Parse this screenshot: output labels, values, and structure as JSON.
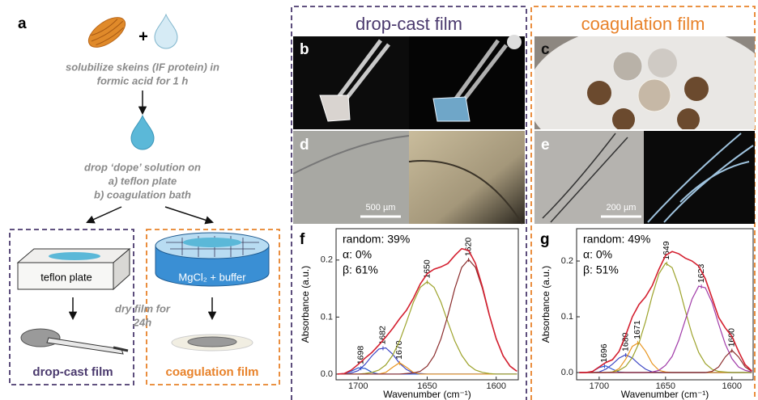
{
  "panel_letters": [
    "a",
    "b",
    "c",
    "d",
    "e"
  ],
  "schematic": {
    "plus": "+",
    "step1": [
      "solubilize skeins (IF protein) in",
      "formic acid for 1 h"
    ],
    "step2": [
      "drop ‘dope’ solution on",
      "a) teflon plate",
      "b) coagulation bath"
    ],
    "teflon": "teflon plate",
    "bath": "MgCl₂ + buffer",
    "dry": [
      "dry film for",
      "24h"
    ],
    "left_result": "drop-cast film",
    "right_result": "coagulation film"
  },
  "columns": {
    "left": "drop-cast film",
    "right": "coagulation film"
  },
  "scale_bars": [
    "500 µm",
    "200 µm"
  ],
  "chart_data": [
    {
      "type": "line",
      "label": "f",
      "annotations": [
        "random: 39%",
        "α: 0%",
        "β: 61%"
      ],
      "xlabel": "Wavenumber (cm⁻¹)",
      "ylabel": "Absorbance (a.u.)",
      "x": [
        1715,
        1710,
        1705,
        1700,
        1695,
        1690,
        1685,
        1680,
        1675,
        1670,
        1665,
        1660,
        1655,
        1650,
        1645,
        1640,
        1635,
        1630,
        1625,
        1620,
        1615,
        1610,
        1605,
        1600,
        1595,
        1590,
        1585
      ],
      "xlim": [
        1716,
        1584
      ],
      "ylim": [
        -0.01,
        0.255
      ],
      "xticks": [
        1700,
        1650,
        1600
      ],
      "yticks": [
        {
          "value": 0,
          "label": "0.0"
        },
        0.1,
        0.2
      ],
      "series": [
        {
          "peak": 1698,
          "color": "#2b58d0",
          "values": [
            0,
            0.001,
            0.005,
            0.011,
            0.01,
            0.003,
            0,
            0,
            0,
            0,
            0,
            0,
            0,
            0,
            0,
            0,
            0,
            0,
            0,
            0,
            0,
            0,
            0,
            0,
            0,
            0,
            0
          ]
        },
        {
          "peak": 1682,
          "color": "#3c46c4",
          "values": [
            0,
            0,
            0.002,
            0.006,
            0.017,
            0.032,
            0.044,
            0.046,
            0.035,
            0.019,
            0.008,
            0.002,
            0.001,
            0,
            0,
            0,
            0,
            0,
            0,
            0,
            0,
            0,
            0,
            0,
            0,
            0,
            0
          ]
        },
        {
          "peak": 1670,
          "color": "#e8951f",
          "values": [
            0,
            0,
            0,
            0,
            0,
            0,
            0,
            0.003,
            0.012,
            0.02,
            0.012,
            0.003,
            0,
            0,
            0,
            0,
            0,
            0,
            0,
            0,
            0,
            0,
            0,
            0,
            0,
            0,
            0
          ]
        },
        {
          "peak": 1650,
          "color": "#9da32c",
          "values": [
            0,
            0,
            0,
            0,
            0.001,
            0.003,
            0.007,
            0.016,
            0.033,
            0.058,
            0.091,
            0.126,
            0.152,
            0.162,
            0.152,
            0.126,
            0.091,
            0.058,
            0.033,
            0.016,
            0.007,
            0.003,
            0.001,
            0,
            0,
            0,
            0
          ]
        },
        {
          "peak": 1620,
          "color": "#8a2c2c",
          "values": [
            0,
            0,
            0,
            0,
            0,
            0,
            0,
            0,
            0,
            0,
            0.001,
            0.002,
            0.005,
            0.014,
            0.032,
            0.062,
            0.103,
            0.15,
            0.187,
            0.201,
            0.187,
            0.15,
            0.103,
            0.062,
            0.032,
            0.014,
            0.005
          ]
        },
        {
          "color": "#d42030",
          "values": [
            0,
            0.001,
            0.007,
            0.017,
            0.028,
            0.038,
            0.051,
            0.065,
            0.08,
            0.097,
            0.112,
            0.133,
            0.158,
            0.176,
            0.184,
            0.188,
            0.194,
            0.208,
            0.22,
            0.217,
            0.194,
            0.153,
            0.104,
            0.062,
            0.032,
            0.014,
            0.005
          ]
        }
      ]
    },
    {
      "type": "line",
      "label": "g",
      "annotations": [
        "random: 49%",
        "α: 0%",
        "β: 51%"
      ],
      "xlabel": "Wavenumber (cm⁻¹)",
      "ylabel": "Absorbance (a.u.)",
      "x": [
        1715,
        1710,
        1705,
        1700,
        1695,
        1690,
        1685,
        1680,
        1675,
        1670,
        1665,
        1660,
        1655,
        1650,
        1645,
        1640,
        1635,
        1630,
        1625,
        1620,
        1615,
        1610,
        1605,
        1600,
        1595,
        1590,
        1585
      ],
      "xlim": [
        1717,
        1584
      ],
      "ylim": [
        -0.013,
        0.258
      ],
      "xticks": [
        1700,
        1650,
        1600
      ],
      "yticks": [
        {
          "value": 0,
          "label": "0.0"
        },
        0.1,
        0.2
      ],
      "series": [
        {
          "peak": 1696,
          "color": "#2b58d0",
          "values": [
            0,
            0,
            0.002,
            0.009,
            0.012,
            0.006,
            0.001,
            0,
            0,
            0,
            0,
            0,
            0,
            0,
            0,
            0,
            0,
            0,
            0,
            0,
            0,
            0,
            0,
            0,
            0,
            0,
            0
          ]
        },
        {
          "peak": 1680,
          "color": "#3c46c4",
          "values": [
            0,
            0,
            0,
            0.001,
            0.006,
            0.015,
            0.026,
            0.032,
            0.026,
            0.015,
            0.006,
            0.001,
            0,
            0,
            0,
            0,
            0,
            0,
            0,
            0,
            0,
            0,
            0,
            0,
            0,
            0,
            0
          ]
        },
        {
          "peak": 1671,
          "color": "#e8951f",
          "values": [
            0,
            0,
            0,
            0,
            0,
            0.001,
            0.007,
            0.024,
            0.047,
            0.054,
            0.038,
            0.016,
            0.004,
            0.001,
            0,
            0,
            0,
            0,
            0,
            0,
            0,
            0,
            0,
            0,
            0,
            0,
            0
          ]
        },
        {
          "peak": 1649,
          "color": "#9da32c",
          "values": [
            0,
            0,
            0,
            0,
            0,
            0.001,
            0.004,
            0.011,
            0.027,
            0.053,
            0.092,
            0.138,
            0.177,
            0.196,
            0.188,
            0.155,
            0.11,
            0.068,
            0.036,
            0.016,
            0.006,
            0.002,
            0.001,
            0,
            0,
            0,
            0
          ]
        },
        {
          "peak": 1623,
          "color": "#a03aa8",
          "values": [
            0,
            0,
            0,
            0,
            0,
            0,
            0,
            0,
            0,
            0,
            0,
            0.001,
            0.004,
            0.013,
            0.029,
            0.058,
            0.095,
            0.132,
            0.155,
            0.152,
            0.126,
            0.087,
            0.051,
            0.025,
            0.01,
            0.004,
            0.001
          ]
        },
        {
          "peak": 1600,
          "color": "#8a2c2c",
          "values": [
            0,
            0,
            0,
            0,
            0,
            0,
            0,
            0,
            0,
            0,
            0,
            0,
            0,
            0,
            0,
            0,
            0,
            0,
            0,
            0,
            0.002,
            0.01,
            0.028,
            0.04,
            0.028,
            0.01,
            0.002
          ]
        },
        {
          "color": "#d42030",
          "values": [
            0,
            0,
            0.002,
            0.01,
            0.018,
            0.023,
            0.038,
            0.067,
            0.1,
            0.122,
            0.136,
            0.156,
            0.185,
            0.21,
            0.217,
            0.213,
            0.205,
            0.2,
            0.191,
            0.168,
            0.134,
            0.099,
            0.08,
            0.065,
            0.038,
            0.014,
            0.003
          ]
        }
      ]
    }
  ]
}
